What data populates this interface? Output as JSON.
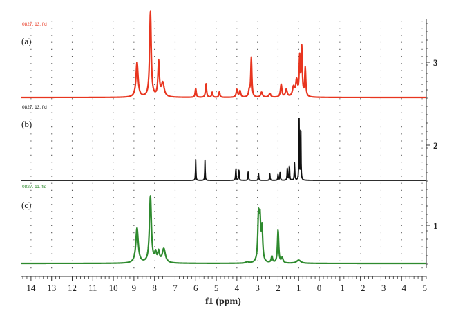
{
  "chart_data": {
    "type": "line",
    "xlabel": "f1 (ppm)",
    "xlim": [
      14.5,
      -5.2
    ],
    "x_reversed": true,
    "x_ticks": [
      "14",
      "13",
      "12",
      "11",
      "10",
      "9",
      "8",
      "7",
      "6",
      "5",
      "4",
      "3",
      "2",
      "1",
      "0",
      "−1",
      "−2",
      "−3",
      "−4",
      "−5"
    ],
    "x_tick_values": [
      14,
      13,
      12,
      11,
      10,
      9,
      8,
      7,
      6,
      5,
      4,
      3,
      2,
      1,
      0,
      -1,
      -2,
      -3,
      -4,
      -5
    ],
    "stack_axis_ticks": [
      "3",
      "2",
      "1"
    ],
    "grid": "dotted vertical",
    "series": [
      {
        "panel": "(a)",
        "name": "0827. 13. fid",
        "color": "#e8351f",
        "peaks": [
          {
            "ppm": 8.85,
            "height": 0.55,
            "width": 0.06
          },
          {
            "ppm": 8.2,
            "height": 1.35,
            "width": 0.045
          },
          {
            "ppm": 7.8,
            "height": 0.55,
            "width": 0.04
          },
          {
            "ppm": 7.6,
            "height": 0.22,
            "width": 0.08
          },
          {
            "ppm": 6.0,
            "height": 0.14,
            "width": 0.03
          },
          {
            "ppm": 5.5,
            "height": 0.22,
            "width": 0.03
          },
          {
            "ppm": 5.2,
            "height": 0.08,
            "width": 0.03
          },
          {
            "ppm": 4.85,
            "height": 0.09,
            "width": 0.03
          },
          {
            "ppm": 4.0,
            "height": 0.12,
            "width": 0.04
          },
          {
            "ppm": 3.85,
            "height": 0.1,
            "width": 0.04
          },
          {
            "ppm": 3.4,
            "height": 0.1,
            "width": 0.04
          },
          {
            "ppm": 3.3,
            "height": 0.62,
            "width": 0.03
          },
          {
            "ppm": 2.8,
            "height": 0.08,
            "width": 0.05
          },
          {
            "ppm": 2.4,
            "height": 0.06,
            "width": 0.05
          },
          {
            "ppm": 1.85,
            "height": 0.2,
            "width": 0.04
          },
          {
            "ppm": 1.6,
            "height": 0.12,
            "width": 0.05
          },
          {
            "ppm": 1.25,
            "height": 0.15,
            "width": 0.06
          },
          {
            "ppm": 1.1,
            "height": 0.25,
            "width": 0.05
          },
          {
            "ppm": 0.95,
            "height": 0.6,
            "width": 0.03
          },
          {
            "ppm": 0.85,
            "height": 0.75,
            "width": 0.03
          },
          {
            "ppm": 0.68,
            "height": 0.45,
            "width": 0.03
          }
        ]
      },
      {
        "panel": "(b)",
        "name": "0827. 13. fid",
        "color": "#111111",
        "peaks": [
          {
            "ppm": 6.0,
            "height": 0.33,
            "width": 0.012
          },
          {
            "ppm": 5.55,
            "height": 0.32,
            "width": 0.012
          },
          {
            "ppm": 4.05,
            "height": 0.2,
            "width": 0.015
          },
          {
            "ppm": 3.9,
            "height": 0.17,
            "width": 0.015
          },
          {
            "ppm": 3.45,
            "height": 0.14,
            "width": 0.015
          },
          {
            "ppm": 2.95,
            "height": 0.11,
            "width": 0.015
          },
          {
            "ppm": 2.4,
            "height": 0.1,
            "width": 0.015
          },
          {
            "ppm": 2.0,
            "height": 0.1,
            "width": 0.015
          },
          {
            "ppm": 1.9,
            "height": 0.14,
            "width": 0.015
          },
          {
            "ppm": 1.55,
            "height": 0.2,
            "width": 0.015
          },
          {
            "ppm": 1.45,
            "height": 0.25,
            "width": 0.015
          },
          {
            "ppm": 1.2,
            "height": 0.28,
            "width": 0.015
          },
          {
            "ppm": 0.98,
            "height": 1.0,
            "width": 0.012
          },
          {
            "ppm": 0.9,
            "height": 1.02,
            "width": 0.012
          }
        ]
      },
      {
        "panel": "(c)",
        "name": "0827. 11. fid",
        "color": "#2e8a2e",
        "peaks": [
          {
            "ppm": 8.85,
            "height": 0.55,
            "width": 0.07
          },
          {
            "ppm": 8.2,
            "height": 1.05,
            "width": 0.055
          },
          {
            "ppm": 7.95,
            "height": 0.14,
            "width": 0.05
          },
          {
            "ppm": 7.8,
            "height": 0.16,
            "width": 0.05
          },
          {
            "ppm": 7.55,
            "height": 0.22,
            "width": 0.09
          },
          {
            "ppm": 3.5,
            "height": 0.02,
            "width": 0.08
          },
          {
            "ppm": 2.95,
            "height": 0.68,
            "width": 0.04
          },
          {
            "ppm": 2.88,
            "height": 0.62,
            "width": 0.04
          },
          {
            "ppm": 2.78,
            "height": 0.52,
            "width": 0.04
          },
          {
            "ppm": 2.3,
            "height": 0.1,
            "width": 0.04
          },
          {
            "ppm": 2.0,
            "height": 0.52,
            "width": 0.035
          },
          {
            "ppm": 1.8,
            "height": 0.08,
            "width": 0.05
          },
          {
            "ppm": 1.0,
            "height": 0.05,
            "width": 0.12
          }
        ]
      }
    ]
  }
}
